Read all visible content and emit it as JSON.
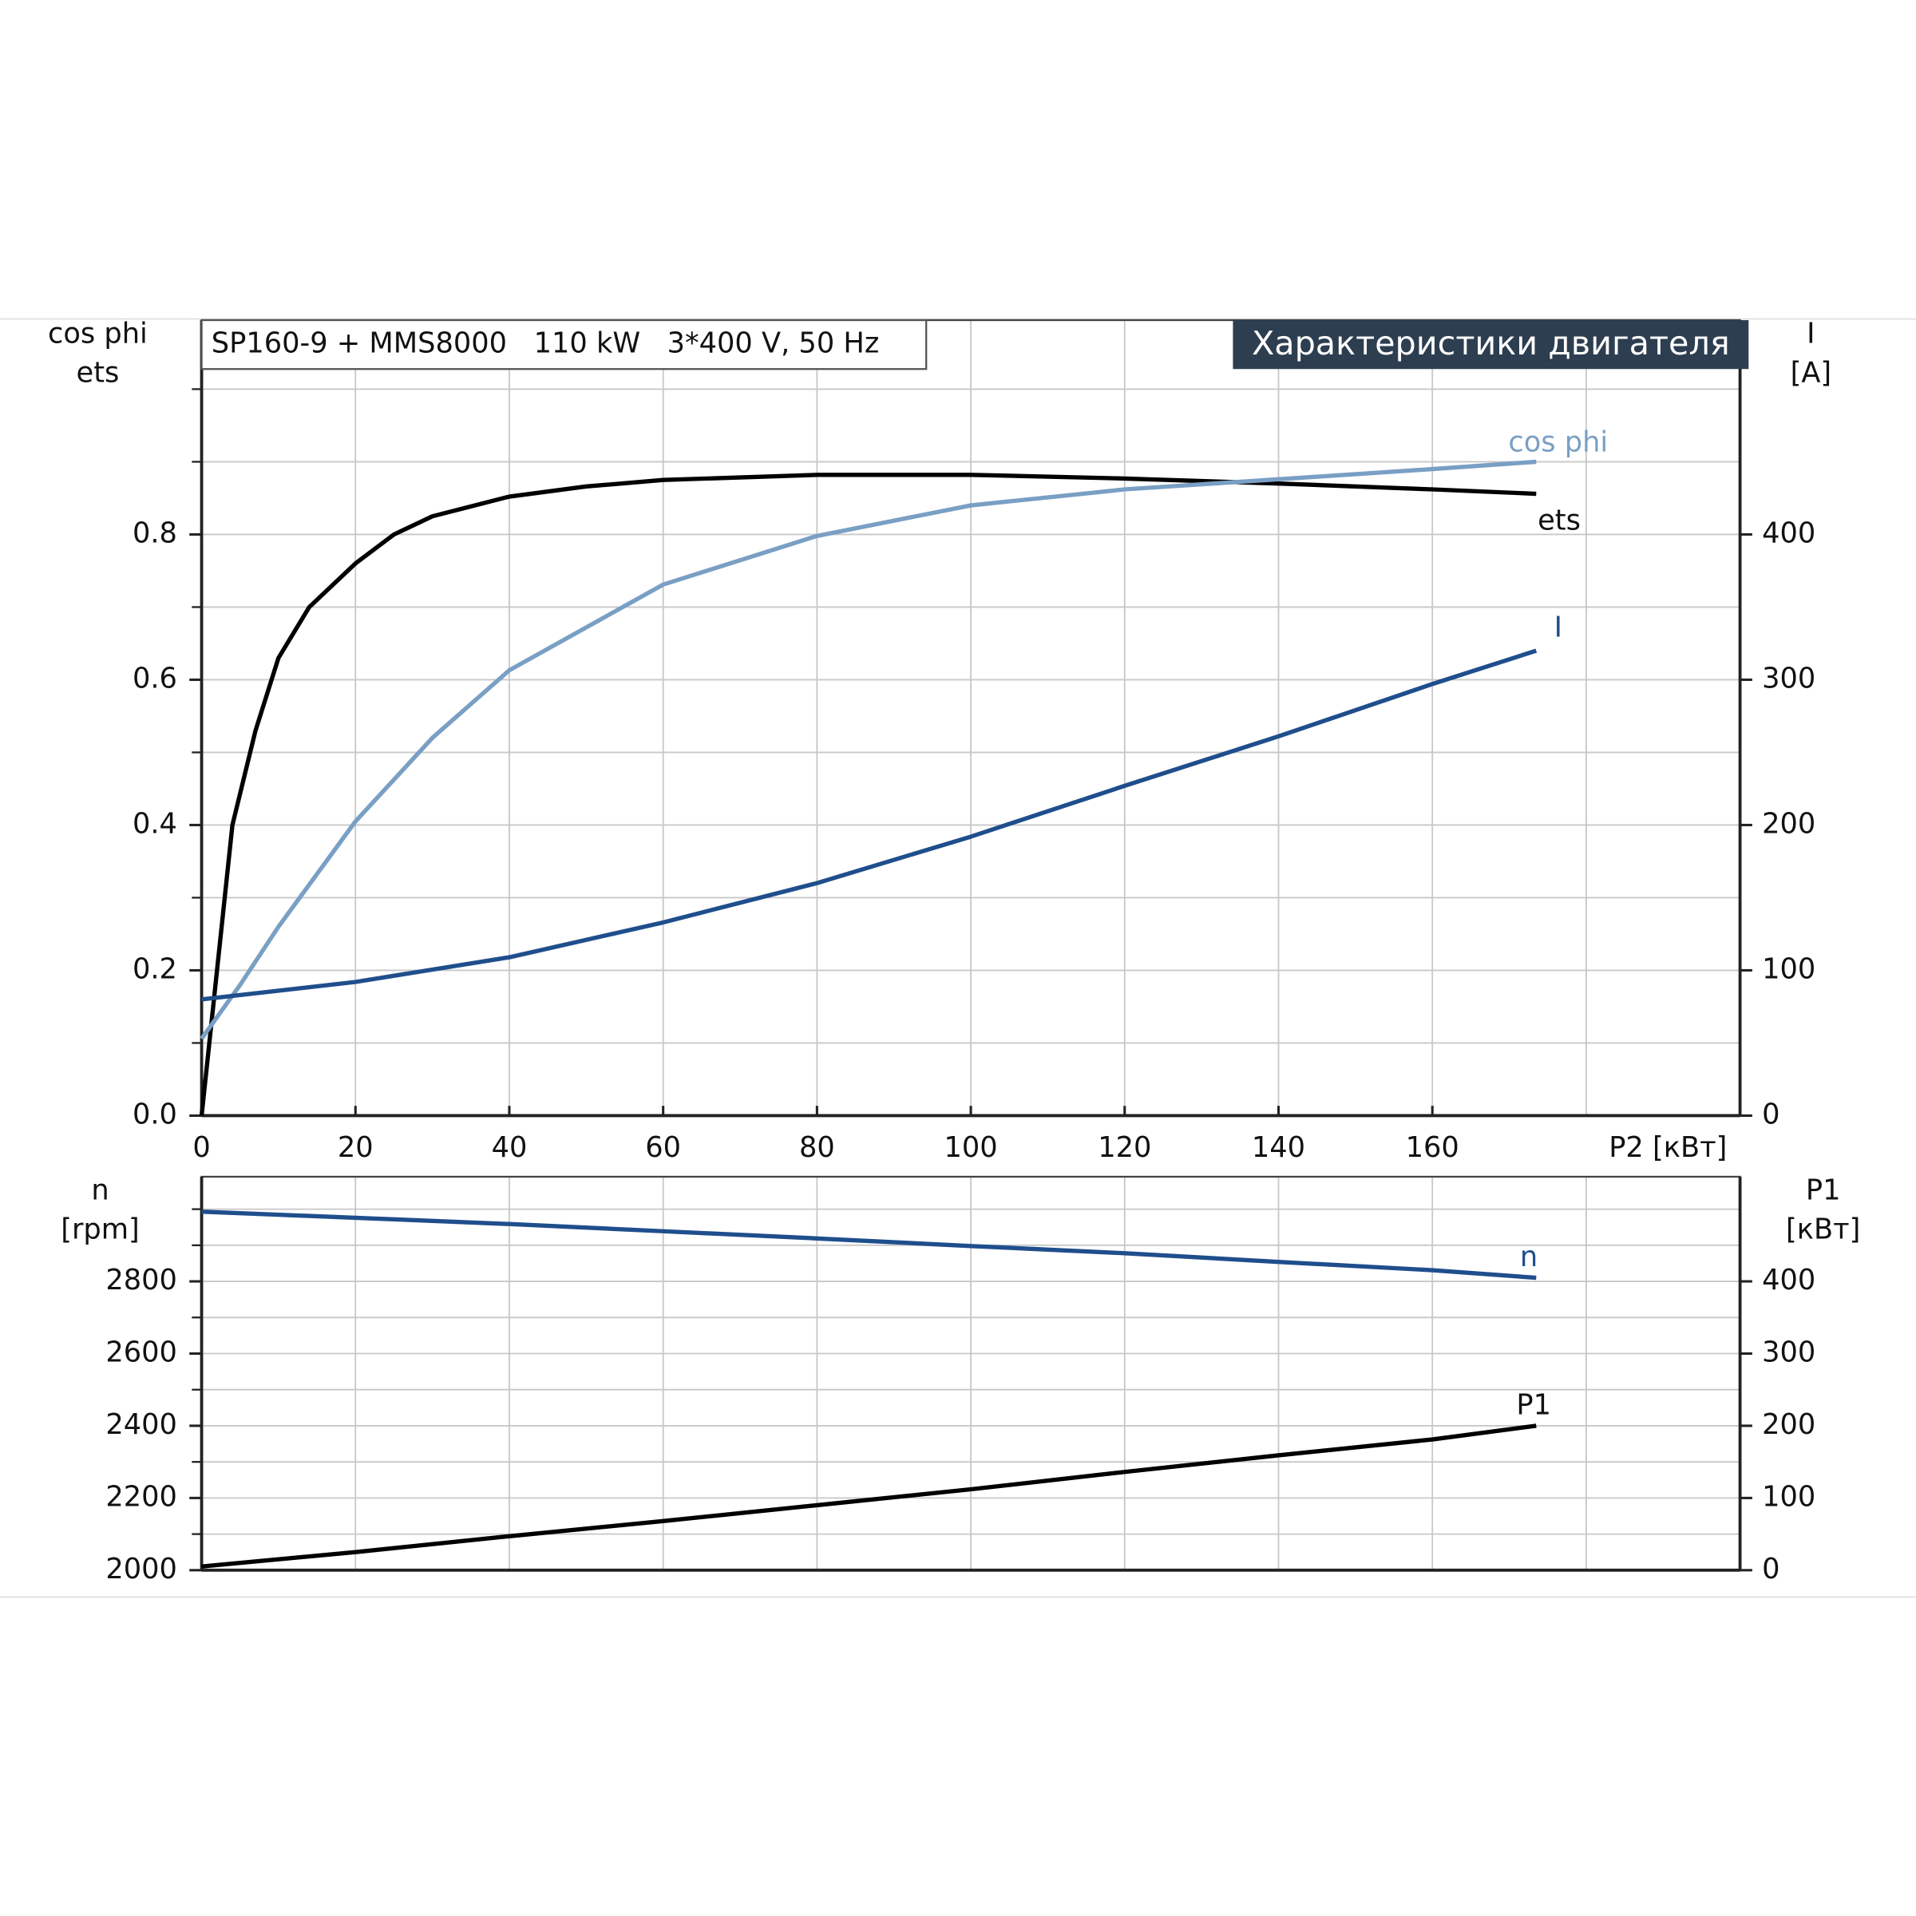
{
  "chart_data": [
    {
      "type": "line",
      "title": "Характеристики двигателя",
      "annotation": "SP160-9 + MMS8000   110 kW   3*400 V, 50 Hz",
      "ylabel": [
        "cos phi",
        "ets"
      ],
      "y2label": [
        "I",
        "[A]"
      ],
      "xlabel": "P2 [кВт]",
      "xlim": [
        0,
        200
      ],
      "xticks": [
        0,
        20,
        40,
        60,
        80,
        100,
        120,
        140,
        160
      ],
      "minor_xticks": [
        180,
        200
      ],
      "ylim": [
        0,
        1.1
      ],
      "yticks": [
        {
          "value": 0,
          "label": "0.0"
        },
        0.2,
        0.4,
        0.6,
        0.8
      ],
      "minor_yticks": [
        0.1,
        0.3,
        0.5,
        0.7,
        0.9,
        1.0
      ],
      "y2lim": [
        0,
        550
      ],
      "y2ticks": [
        0,
        100,
        200,
        300,
        400
      ],
      "grid": true,
      "series": [
        {
          "name": "ets",
          "color": "#000000",
          "x": [
            0,
            2,
            4,
            7,
            10,
            14,
            20,
            25,
            30,
            40,
            50,
            60,
            80,
            100,
            120,
            140,
            160,
            173.5
          ],
          "values": [
            0,
            0.2,
            0.4,
            0.53,
            0.63,
            0.7,
            0.76,
            0.8,
            0.825,
            0.852,
            0.866,
            0.875,
            0.882,
            0.882,
            0.877,
            0.87,
            0.862,
            0.856
          ]
        },
        {
          "name": "cos phi",
          "color": "#7a9fc4",
          "x": [
            0,
            5,
            10,
            20,
            30,
            40,
            60,
            80,
            100,
            120,
            140,
            160,
            173.5
          ],
          "values": [
            0.106,
            0.18,
            0.26,
            0.405,
            0.52,
            0.613,
            0.731,
            0.798,
            0.84,
            0.862,
            0.876,
            0.89,
            0.9
          ]
        },
        {
          "name": "I",
          "color": "#1f4e8c",
          "axis": "y2",
          "x": [
            0,
            20,
            40,
            60,
            80,
            100,
            120,
            140,
            160,
            173.5
          ],
          "values": [
            80,
            92,
            109,
            133,
            160,
            192,
            227,
            261,
            297,
            320
          ]
        }
      ]
    },
    {
      "type": "line",
      "ylabel": [
        "n",
        "[rpm]"
      ],
      "y2label": [
        "P1",
        "[кВт]"
      ],
      "xlim": [
        0,
        200
      ],
      "minor_xticks": [
        20,
        40,
        60,
        80,
        100,
        120,
        140,
        160,
        180,
        200
      ],
      "ylim": [
        2000,
        3100
      ],
      "yticks": [
        2000,
        2200,
        2400,
        2600,
        2800
      ],
      "minor_yticks": [
        2100,
        2300,
        2500,
        2700,
        2900,
        3000
      ],
      "y2lim": [
        0,
        550
      ],
      "y2ticks": [
        0,
        100,
        200,
        300,
        400
      ],
      "grid": true,
      "series": [
        {
          "name": "n",
          "color": "#1f4e8c",
          "x": [
            0,
            20,
            40,
            60,
            80,
            100,
            120,
            140,
            160,
            173.5
          ],
          "values": [
            2993,
            2976,
            2959,
            2939,
            2919,
            2898,
            2878,
            2854,
            2831,
            2810
          ]
        },
        {
          "name": "P1",
          "color": "#000000",
          "axis": "y2",
          "x": [
            0,
            20,
            40,
            60,
            80,
            100,
            120,
            140,
            160,
            173.5
          ],
          "values": [
            5,
            25,
            47,
            68,
            90,
            112,
            136,
            159,
            181,
            200
          ]
        }
      ]
    }
  ]
}
